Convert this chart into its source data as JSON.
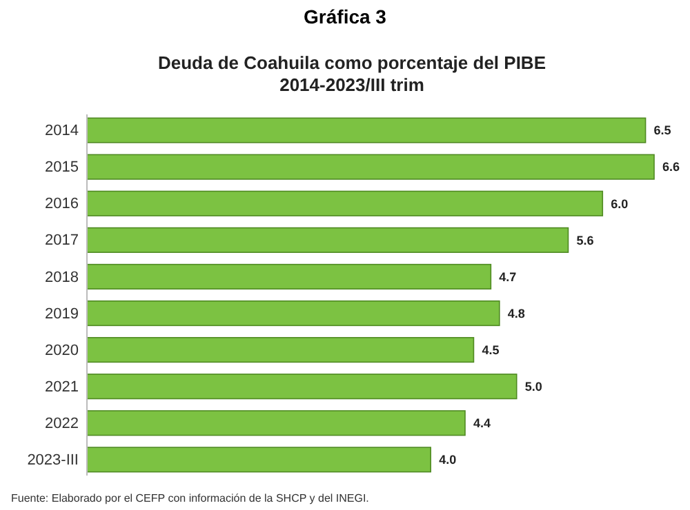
{
  "chart_data": {
    "type": "bar",
    "orientation": "horizontal",
    "title": "Deuda de Coahuila como porcentaje del PIBE",
    "subtitle": "2014-2023/III trim",
    "categories": [
      "2014",
      "2015",
      "2016",
      "2017",
      "2018",
      "2019",
      "2020",
      "2021",
      "2022",
      "2023-III"
    ],
    "values": [
      6.5,
      6.6,
      6.0,
      5.6,
      4.7,
      4.8,
      4.5,
      5.0,
      4.4,
      4.0
    ],
    "color": "#7cc242",
    "value_labels": [
      "6.5",
      "6.6",
      "6.0",
      "5.6",
      "4.7",
      "4.8",
      "4.5",
      "5.0",
      "4.4",
      "4.0"
    ],
    "annotations": [
      "Gráfica 3",
      "Fuente: Elaborado por el CEFP con información de la SHCP y del INEGI."
    ]
  }
}
